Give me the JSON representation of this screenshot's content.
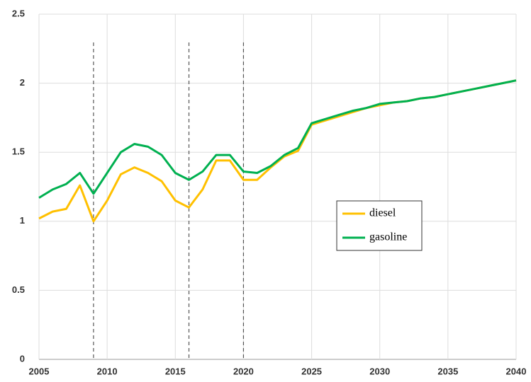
{
  "chart_data": {
    "type": "line",
    "x": [
      2005,
      2006,
      2007,
      2008,
      2009,
      2010,
      2011,
      2012,
      2013,
      2014,
      2015,
      2016,
      2017,
      2018,
      2019,
      2020,
      2021,
      2022,
      2023,
      2024,
      2025,
      2026,
      2027,
      2028,
      2029,
      2030,
      2031,
      2032,
      2033,
      2034,
      2035,
      2036,
      2037,
      2038,
      2039,
      2040
    ],
    "series": [
      {
        "name": "diesel",
        "color": "#FFC000",
        "values": [
          1.02,
          1.07,
          1.09,
          1.26,
          1.0,
          1.15,
          1.34,
          1.39,
          1.35,
          1.29,
          1.15,
          1.1,
          1.23,
          1.44,
          1.44,
          1.3,
          1.3,
          1.39,
          1.47,
          1.51,
          1.7,
          1.73,
          1.76,
          1.79,
          1.82,
          1.84,
          1.86,
          1.87,
          1.89,
          1.9,
          1.92,
          1.94,
          1.96,
          1.98,
          2.0,
          2.02
        ]
      },
      {
        "name": "gasoline",
        "color": "#00B050",
        "values": [
          1.17,
          1.23,
          1.27,
          1.35,
          1.2,
          1.35,
          1.5,
          1.56,
          1.54,
          1.48,
          1.35,
          1.3,
          1.36,
          1.48,
          1.48,
          1.36,
          1.35,
          1.4,
          1.48,
          1.53,
          1.71,
          1.74,
          1.77,
          1.8,
          1.82,
          1.85,
          1.86,
          1.87,
          1.89,
          1.9,
          1.92,
          1.94,
          1.96,
          1.98,
          2.0,
          2.02
        ]
      }
    ],
    "xlim": [
      2005,
      2040
    ],
    "xticks": [
      2005,
      2010,
      2015,
      2020,
      2025,
      2030,
      2035,
      2040
    ],
    "ylim": [
      0,
      2.5
    ],
    "yticks": [
      0,
      0.5,
      1,
      1.5,
      2,
      2.5
    ],
    "vlines": [
      2009,
      2016,
      2020
    ],
    "grid": true,
    "legend": "center-right"
  }
}
